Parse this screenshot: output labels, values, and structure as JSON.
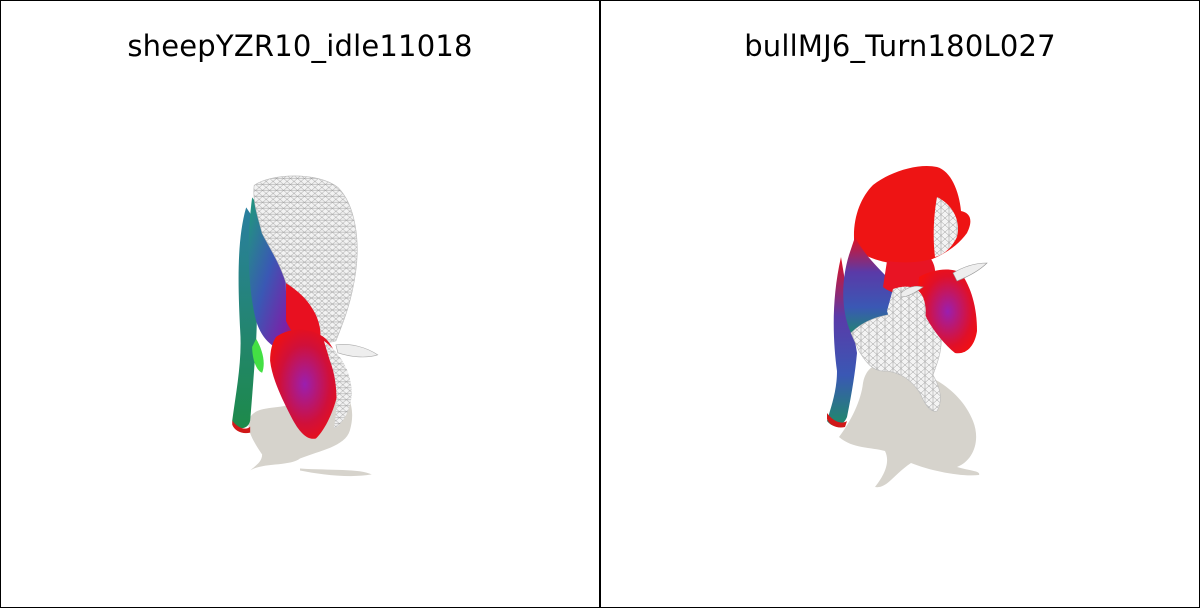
{
  "panels": [
    {
      "title": "sheepYZR10_idle11018",
      "subject": "sheep-mesh"
    },
    {
      "title": "bullMJ6_Turn180L027",
      "subject": "bull-mesh"
    }
  ],
  "colors": {
    "background": "#ffffff",
    "border": "#000000",
    "shadow": "#d6d3cc",
    "mesh_white": "#efefef",
    "red": "#ee1111",
    "blue": "#3b4fb0",
    "purple": "#8a1aa8",
    "green": "#1f8a55"
  }
}
